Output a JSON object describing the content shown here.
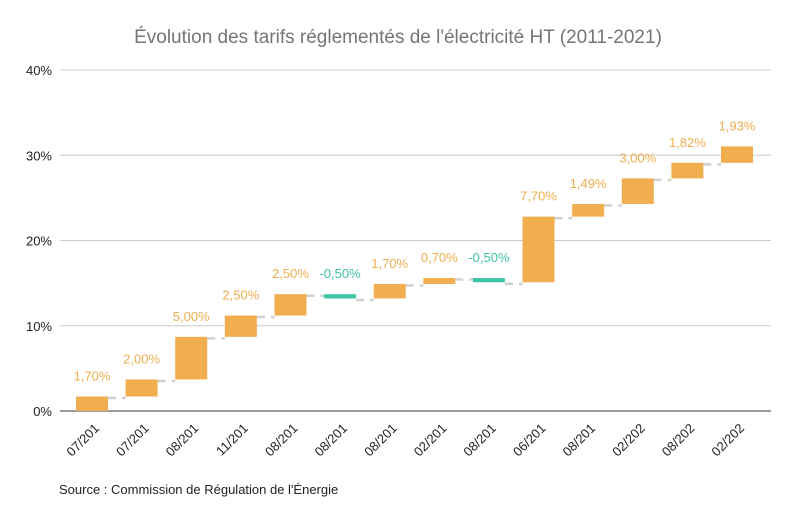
{
  "chart_data": {
    "type": "waterfall",
    "title": "Évolution des tarifs réglementés de l'électricité HT (2011-2021)",
    "source": "Source : Commission de Régulation de l'Énergie",
    "categories": [
      "07/201",
      "07/201",
      "08/201",
      "11/201",
      "08/201",
      "08/201",
      "08/201",
      "02/201",
      "08/201",
      "06/201",
      "08/201",
      "02/202",
      "08/202",
      "02/202"
    ],
    "values": [
      1.7,
      2.0,
      5.0,
      2.5,
      2.5,
      -0.5,
      1.7,
      0.7,
      -0.5,
      7.7,
      1.49,
      3.0,
      1.82,
      1.93
    ],
    "data_labels": [
      "1,70%",
      "2,00%",
      "5,00%",
      "2,50%",
      "2,50%",
      "-0,50%",
      "1,70%",
      "0,70%",
      "-0,50%",
      "7,70%",
      "1,49%",
      "3,00%",
      "1,82%",
      "1,93%"
    ],
    "yticks": [
      "0%",
      "10%",
      "20%",
      "30%",
      "40%"
    ],
    "ylim": [
      0,
      40
    ],
    "grid": true,
    "connector_lines": "dashed",
    "colors": {
      "increase": "#f0ae4f",
      "decrease": "#3ec4a7",
      "grid": "#cccccc",
      "connector": "#d0d0d0"
    }
  }
}
